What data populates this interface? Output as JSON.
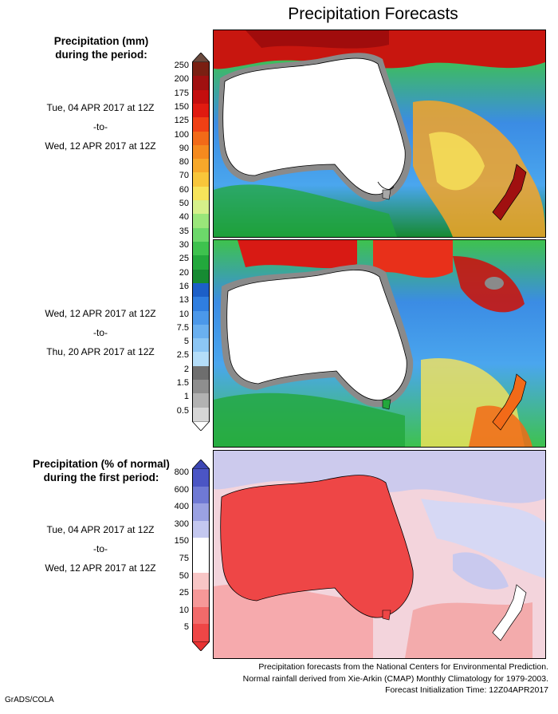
{
  "title": "Precipitation Forecasts",
  "panel1": {
    "label_line1": "Precipitation (mm)",
    "label_line2": "during the period:",
    "period_start": "Tue, 04 APR 2017 at 12Z",
    "period_to": "-to-",
    "period_end": "Wed, 12 APR 2017 at 12Z"
  },
  "panel2": {
    "period_start": "Wed, 12 APR 2017 at 12Z",
    "period_to": "-to-",
    "period_end": "Thu, 20 APR 2017 at 12Z"
  },
  "panel3": {
    "label_line1": "Precipitation (% of normal)",
    "label_line2": "during the first period:",
    "period_start": "Tue, 04 APR 2017 at 12Z",
    "period_to": "-to-",
    "period_end": "Wed, 12 APR 2017 at 12Z"
  },
  "legend_mm": {
    "ticks": [
      "250",
      "200",
      "175",
      "150",
      "125",
      "100",
      "90",
      "80",
      "70",
      "60",
      "50",
      "40",
      "35",
      "30",
      "25",
      "20",
      "16",
      "13",
      "10",
      "7.5",
      "5",
      "2.5",
      "2",
      "1.5",
      "1",
      "0.5"
    ],
    "colors": [
      "#7a1f12",
      "#a01010",
      "#c40e0e",
      "#e01a10",
      "#f04014",
      "#f26a18",
      "#f58a1e",
      "#f7a82a",
      "#f8c63a",
      "#f7e45a",
      "#d6f08a",
      "#9ae67a",
      "#6cd86a",
      "#3ec24e",
      "#22a83c",
      "#168a32",
      "#1c5fc8",
      "#2f7ee0",
      "#4b98ea",
      "#6ab0f0",
      "#8cc6f4",
      "#b4ddf8",
      "#6e6e6e",
      "#8e8e8e",
      "#b2b2b2",
      "#d6d6d6"
    ],
    "top_cap": "#6b4a3e",
    "bottom_cap": "#ffffff"
  },
  "legend_pct": {
    "ticks": [
      "800",
      "600",
      "400",
      "300",
      "150",
      "75",
      "50",
      "25",
      "10",
      "5"
    ],
    "colors": [
      "#4b55c4",
      "#6f79d4",
      "#9aa1e2",
      "#c4c8f0",
      "#ffffff",
      "#ffffff",
      "#f8c6c6",
      "#f69898",
      "#f26a6a",
      "#ee4646"
    ],
    "top_cap": "#3c46b4",
    "bottom_cap": "#e83232"
  },
  "footer": {
    "line1": "Precipitation forecasts from the National Centers for Environmental Prediction.",
    "line2": "Normal rainfall derived from Xie-Arkin (CMAP) Monthly Climatology for 1979-2003.",
    "line3": "Forecast Initialization Time: 12Z04APR2017"
  },
  "credit": "GrADS/COLA"
}
